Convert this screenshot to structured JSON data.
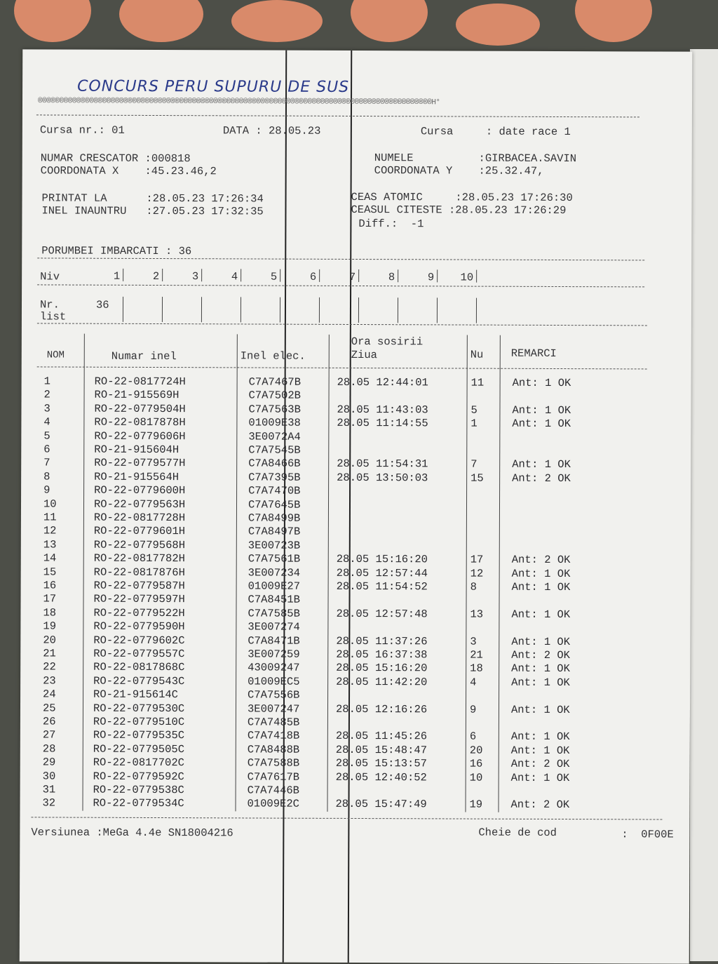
{
  "handwritten_title": "CONCURS PERU SUPURU DE SUS",
  "ornament_suffix": "H°",
  "header": {
    "cursa_nr": "Cursa nr.: 01",
    "data": "DATA : 28.05.23",
    "cursa": "Cursa     : date race 1",
    "numar_crescator": "NUMAR CRESCATOR :000818",
    "coordonata_x": "COORDONATA X    :45.23.46,2",
    "numele": "NUMELE          :GIRBACEA.SAVIN",
    "coordonata_y": "COORDONATA Y    :25.32.47,",
    "printat_la": "PRINTAT LA      :28.05.23 17:26:34",
    "inel_inauntru": "INEL INAUNTRU   :27.05.23 17:32:35",
    "ceas_atomic": "CEAS ATOMIC     :28.05.23 17:26:30",
    "ceasul_citeste": "CEASUL CITESTE :28.05.23 17:26:29",
    "diff": "Diff.:  -1",
    "porumbei": "PORUMBEI IMBARCATI : 36"
  },
  "levels": {
    "niv_label": "Niv",
    "niv": [
      "1",
      "2",
      "3",
      "4",
      "5",
      "6",
      "7",
      "8",
      "9",
      "10"
    ],
    "nr_label": "Nr.",
    "list_label": "list",
    "nr_values": [
      "36"
    ]
  },
  "columns": {
    "nom": "NOM",
    "numar_inel": "Numar inel",
    "inel_elec": "Inel elec.",
    "ora_sosirii": "Ora sosirii",
    "ziua": "Ziua",
    "nu": "Nu",
    "remarci": "REMARCI"
  },
  "rows": [
    [
      "1",
      "RO-22-0817724H",
      "C7A7467B",
      "28.05 12:44:01",
      "11",
      "Ant: 1 OK"
    ],
    [
      "2",
      "RO-21-915569H",
      "C7A7502B",
      "",
      "",
      ""
    ],
    [
      "3",
      "RO-22-0779504H",
      "C7A7563B",
      "28.05 11:43:03",
      "5",
      "Ant: 1 OK"
    ],
    [
      "4",
      "RO-22-0817878H",
      "01009E38",
      "28.05 11:14:55",
      "1",
      "Ant: 1 OK"
    ],
    [
      "5",
      "RO-22-0779606H",
      "3E0072A4",
      "",
      "",
      ""
    ],
    [
      "6",
      "RO-21-915604H",
      "C7A7545B",
      "",
      "",
      ""
    ],
    [
      "7",
      "RO-22-0779577H",
      "C7A8466B",
      "28.05 11:54:31",
      "7",
      "Ant: 1 OK"
    ],
    [
      "8",
      "RO-21-915564H",
      "C7A7395B",
      "28.05 13:50:03",
      "15",
      "Ant: 2 OK"
    ],
    [
      "9",
      "RO-22-0779600H",
      "C7A7470B",
      "",
      "",
      ""
    ],
    [
      "10",
      "RO-22-0779563H",
      "C7A7645B",
      "",
      "",
      ""
    ],
    [
      "11",
      "RO-22-0817728H",
      "C7A8499B",
      "",
      "",
      ""
    ],
    [
      "12",
      "RO-22-0779601H",
      "C7A8497B",
      "",
      "",
      ""
    ],
    [
      "13",
      "RO-22-0779568H",
      "3E00723B",
      "",
      "",
      ""
    ],
    [
      "14",
      "RO-22-0817782H",
      "C7A7561B",
      "28.05 15:16:20",
      "17",
      "Ant: 2 OK"
    ],
    [
      "15",
      "RO-22-0817876H",
      "3E007234",
      "28.05 12:57:44",
      "12",
      "Ant: 1 OK"
    ],
    [
      "16",
      "RO-22-0779587H",
      "01009E27",
      "28.05 11:54:52",
      "8",
      "Ant: 1 OK"
    ],
    [
      "17",
      "RO-22-0779597H",
      "C7A8451B",
      "",
      "",
      ""
    ],
    [
      "18",
      "RO-22-0779522H",
      "C7A7585B",
      "28.05 12:57:48",
      "13",
      "Ant: 1 OK"
    ],
    [
      "19",
      "RO-22-0779590H",
      "3E007274",
      "",
      "",
      ""
    ],
    [
      "20",
      "RO-22-0779602C",
      "C7A8471B",
      "28.05 11:37:26",
      "3",
      "Ant: 1 OK"
    ],
    [
      "21",
      "RO-22-0779557C",
      "3E007259",
      "28.05 16:37:38",
      "21",
      "Ant: 2 OK"
    ],
    [
      "22",
      "RO-22-0817868C",
      "43009247",
      "28.05 15:16:20",
      "18",
      "Ant: 1 OK"
    ],
    [
      "23",
      "RO-22-0779543C",
      "01009EC5",
      "28.05 11:42:20",
      "4",
      "Ant: 1 OK"
    ],
    [
      "24",
      "RO-21-915614C",
      "C7A7556B",
      "",
      "",
      ""
    ],
    [
      "25",
      "RO-22-0779530C",
      "3E007247",
      "28.05 12:16:26",
      "9",
      "Ant: 1 OK"
    ],
    [
      "26",
      "RO-22-0779510C",
      "C7A7485B",
      "",
      "",
      ""
    ],
    [
      "27",
      "RO-22-0779535C",
      "C7A7418B",
      "28.05 11:45:26",
      "6",
      "Ant: 1 OK"
    ],
    [
      "28",
      "RO-22-0779505C",
      "C7A8488B",
      "28.05 15:48:47",
      "20",
      "Ant: 1 OK"
    ],
    [
      "29",
      "RO-22-0817702C",
      "C7A7588B",
      "28.05 15:13:57",
      "16",
      "Ant: 2 OK"
    ],
    [
      "30",
      "RO-22-0779592C",
      "C7A7617B",
      "28.05 12:40:52",
      "10",
      "Ant: 1 OK"
    ],
    [
      "31",
      "RO-22-0779538C",
      "C7A7446B",
      "",
      "",
      ""
    ],
    [
      "32",
      "RO-22-0779534C",
      "01009E2C",
      "28.05 15:47:49",
      "19",
      "Ant: 2 OK"
    ]
  ],
  "footer": {
    "versiunea": "Versiunea :MeGa 4.4e SN18004216",
    "cheie": "Cheie de cod",
    "cheie_value": ":  0F00E"
  },
  "colors": {
    "paper": "#f1f1ee",
    "background": "#4d4f48",
    "handwriting": "#2a3a8a",
    "fabric_dots": "#d98a6a"
  }
}
